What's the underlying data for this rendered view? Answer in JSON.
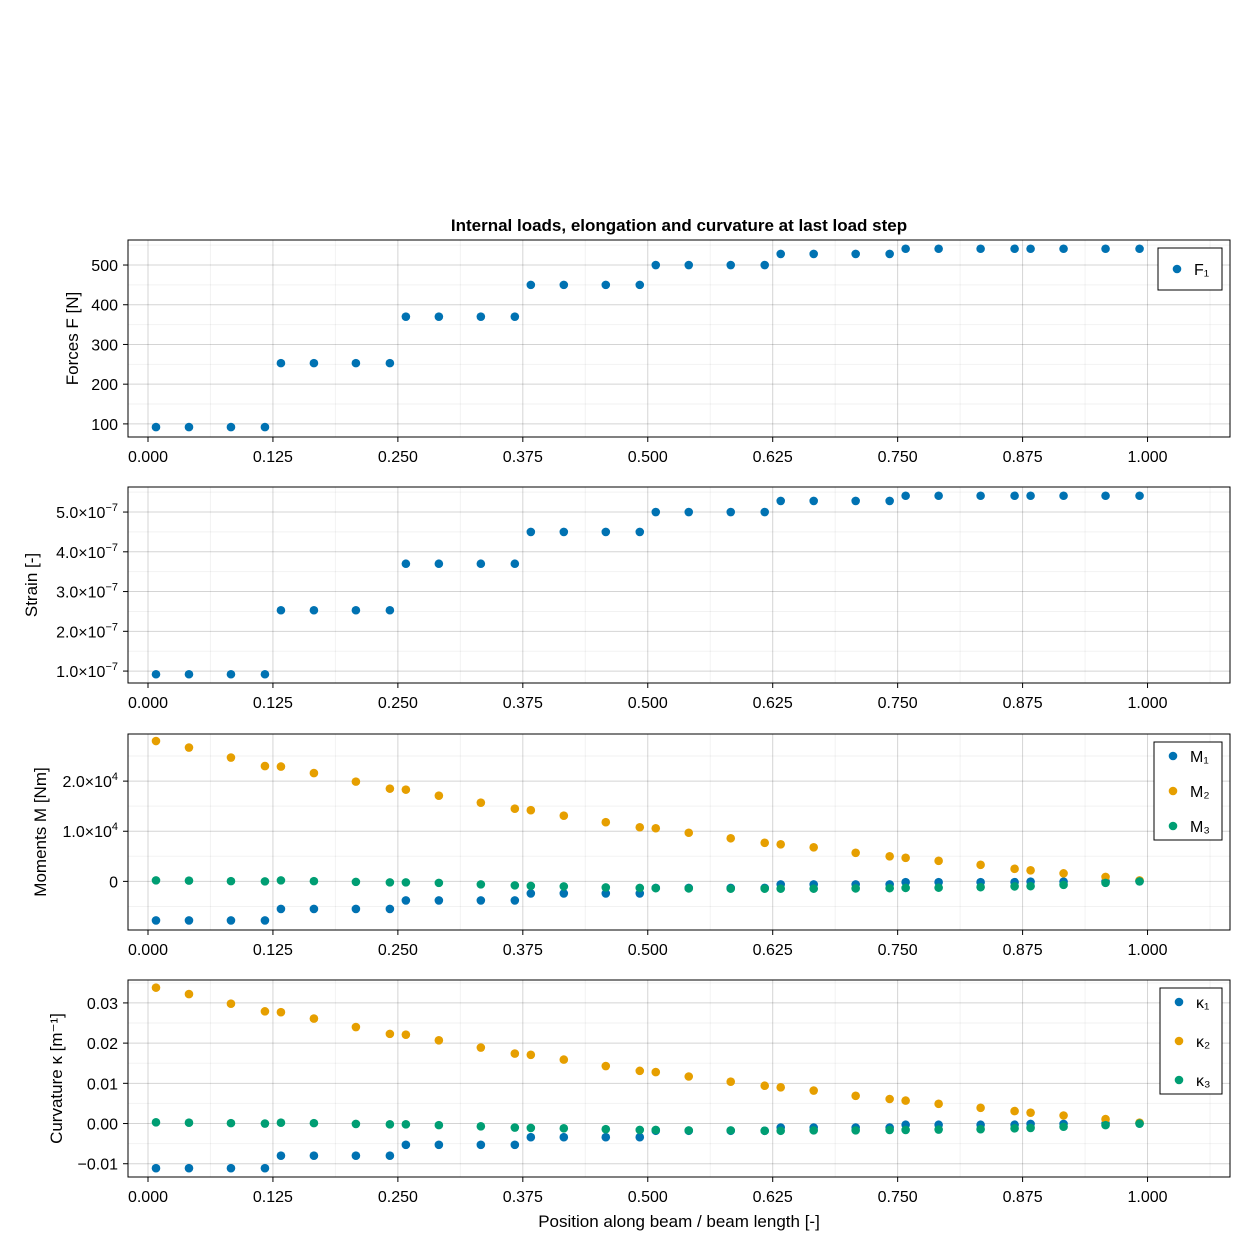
{
  "colors": {
    "blue": "#0072b2",
    "orange": "#e69f00",
    "green": "#009e73"
  },
  "figure": {
    "title": "Internal loads, elongation and curvature at last load step"
  },
  "chart_data": [
    {
      "type": "scatter",
      "title": "Internal loads, elongation and curvature at last load step",
      "xlabel": "",
      "ylabel": "Forces F [N]",
      "xlim": [
        -0.02,
        1.0825
      ],
      "ylim": [
        67,
        563
      ],
      "xticks": [
        0,
        0.125,
        0.25,
        0.375,
        0.5,
        0.625,
        0.75,
        0.875,
        1
      ],
      "xtick_labels": [
        "0.000",
        "0.125",
        "0.250",
        "0.375",
        "0.500",
        "0.625",
        "0.750",
        "0.875",
        "1.000"
      ],
      "yticks": [
        100,
        200,
        300,
        400,
        500
      ],
      "ytick_labels": [
        "100",
        "200",
        "300",
        "400",
        "500"
      ],
      "legend": "top-right",
      "grid": true,
      "series": [
        {
          "name": "F₁",
          "color": "blue",
          "x": [
            0.008,
            0.041,
            0.083,
            0.117,
            0.133,
            0.166,
            0.208,
            0.242,
            0.258,
            0.291,
            0.333,
            0.367,
            0.383,
            0.416,
            0.458,
            0.492,
            0.508,
            0.541,
            0.583,
            0.617,
            0.633,
            0.666,
            0.708,
            0.742,
            0.758,
            0.791,
            0.833,
            0.867,
            0.883,
            0.916,
            0.958,
            0.992
          ],
          "y": [
            92,
            92,
            92,
            92,
            253,
            253,
            253,
            253,
            370,
            370,
            370,
            370,
            450,
            450,
            450,
            450,
            500,
            500,
            500,
            500,
            528,
            528,
            528,
            528,
            541,
            541,
            541,
            541,
            541,
            541,
            541,
            541
          ]
        }
      ]
    },
    {
      "type": "scatter",
      "xlabel": "",
      "ylabel": "Strain [-]",
      "xlim": [
        -0.02,
        1.0825
      ],
      "ylim": [
        7e-08,
        5.63e-07
      ],
      "xticks": [
        0,
        0.125,
        0.25,
        0.375,
        0.5,
        0.625,
        0.75,
        0.875,
        1
      ],
      "xtick_labels": [
        "0.000",
        "0.125",
        "0.250",
        "0.375",
        "0.500",
        "0.625",
        "0.750",
        "0.875",
        "1.000"
      ],
      "yticks": [
        1e-07,
        2e-07,
        3e-07,
        4e-07,
        5e-07
      ],
      "ytick_labels": [
        {
          "m": "1.0×10",
          "e": "−7"
        },
        {
          "m": "2.0×10",
          "e": "−7"
        },
        {
          "m": "3.0×10",
          "e": "−7"
        },
        {
          "m": "4.0×10",
          "e": "−7"
        },
        {
          "m": "5.0×10",
          "e": "−7"
        }
      ],
      "legend": "none",
      "grid": true,
      "series": [
        {
          "color": "blue",
          "x": [
            0.008,
            0.041,
            0.083,
            0.117,
            0.133,
            0.166,
            0.208,
            0.242,
            0.258,
            0.291,
            0.333,
            0.367,
            0.383,
            0.416,
            0.458,
            0.492,
            0.508,
            0.541,
            0.583,
            0.617,
            0.633,
            0.666,
            0.708,
            0.742,
            0.758,
            0.791,
            0.833,
            0.867,
            0.883,
            0.916,
            0.958,
            0.992
          ],
          "y": [
            9.2e-08,
            9.2e-08,
            9.2e-08,
            9.2e-08,
            2.53e-07,
            2.53e-07,
            2.53e-07,
            2.53e-07,
            3.7e-07,
            3.7e-07,
            3.7e-07,
            3.7e-07,
            4.5e-07,
            4.5e-07,
            4.5e-07,
            4.5e-07,
            5e-07,
            5e-07,
            5e-07,
            5e-07,
            5.28e-07,
            5.28e-07,
            5.28e-07,
            5.28e-07,
            5.41e-07,
            5.41e-07,
            5.41e-07,
            5.41e-07,
            5.41e-07,
            5.41e-07,
            5.41e-07,
            5.41e-07
          ]
        }
      ]
    },
    {
      "type": "scatter",
      "xlabel": "",
      "ylabel": "Moments M [Nm]",
      "xlim": [
        -0.02,
        1.0825
      ],
      "ylim": [
        -9700,
        29400
      ],
      "xticks": [
        0,
        0.125,
        0.25,
        0.375,
        0.5,
        0.625,
        0.75,
        0.875,
        1
      ],
      "xtick_labels": [
        "0.000",
        "0.125",
        "0.250",
        "0.375",
        "0.500",
        "0.625",
        "0.750",
        "0.875",
        "1.000"
      ],
      "yticks": [
        0,
        10000,
        20000
      ],
      "ytick_labels": [
        {
          "m": "0",
          "e": ""
        },
        {
          "m": "1.0×10",
          "e": "4"
        },
        {
          "m": "2.0×10",
          "e": "4"
        }
      ],
      "legend": "top-right",
      "grid": true,
      "series": [
        {
          "name": "M₁",
          "color": "blue",
          "x": [
            0.008,
            0.041,
            0.083,
            0.117,
            0.133,
            0.166,
            0.208,
            0.242,
            0.258,
            0.291,
            0.333,
            0.367,
            0.383,
            0.416,
            0.458,
            0.492,
            0.508,
            0.541,
            0.583,
            0.617,
            0.633,
            0.666,
            0.708,
            0.742,
            0.758,
            0.791,
            0.833,
            0.867,
            0.883,
            0.916,
            0.958,
            0.992
          ],
          "y": [
            -7800,
            -7800,
            -7800,
            -7800,
            -5500,
            -5500,
            -5500,
            -5500,
            -3800,
            -3800,
            -3800,
            -3800,
            -2400,
            -2400,
            -2400,
            -2400,
            -1300,
            -1300,
            -1300,
            -1300,
            -600,
            -600,
            -600,
            -600,
            -150,
            -150,
            -150,
            -150,
            -50,
            -50,
            -20,
            0
          ]
        },
        {
          "name": "M₂",
          "color": "orange",
          "x": [
            0.008,
            0.041,
            0.083,
            0.117,
            0.133,
            0.166,
            0.208,
            0.242,
            0.258,
            0.291,
            0.333,
            0.367,
            0.383,
            0.416,
            0.458,
            0.492,
            0.508,
            0.541,
            0.583,
            0.617,
            0.633,
            0.666,
            0.708,
            0.742,
            0.758,
            0.791,
            0.833,
            0.867,
            0.883,
            0.916,
            0.958,
            0.992
          ],
          "y": [
            28000,
            26700,
            24700,
            23000,
            22900,
            21600,
            19900,
            18500,
            18300,
            17100,
            15700,
            14500,
            14200,
            13100,
            11800,
            10800,
            10600,
            9700,
            8600,
            7700,
            7400,
            6800,
            5700,
            5000,
            4700,
            4100,
            3300,
            2500,
            2200,
            1600,
            900,
            200
          ]
        },
        {
          "name": "M₃",
          "color": "green",
          "x": [
            0.008,
            0.041,
            0.083,
            0.117,
            0.133,
            0.166,
            0.208,
            0.242,
            0.258,
            0.291,
            0.333,
            0.367,
            0.383,
            0.416,
            0.458,
            0.492,
            0.508,
            0.541,
            0.583,
            0.617,
            0.633,
            0.666,
            0.708,
            0.742,
            0.758,
            0.791,
            0.833,
            0.867,
            0.883,
            0.916,
            0.958,
            0.992
          ],
          "y": [
            200,
            150,
            50,
            0,
            200,
            50,
            -100,
            -200,
            -200,
            -300,
            -600,
            -800,
            -900,
            -1000,
            -1200,
            -1300,
            -1350,
            -1400,
            -1450,
            -1450,
            -1450,
            -1450,
            -1400,
            -1350,
            -1300,
            -1250,
            -1150,
            -1000,
            -950,
            -700,
            -300,
            0
          ]
        }
      ]
    },
    {
      "type": "scatter",
      "xlabel": "Position along beam / beam length [-]",
      "ylabel": "Curvature κ [m⁻¹]",
      "xlim": [
        -0.02,
        1.0825
      ],
      "ylim": [
        -0.0133,
        0.0357
      ],
      "xticks": [
        0,
        0.125,
        0.25,
        0.375,
        0.5,
        0.625,
        0.75,
        0.875,
        1
      ],
      "xtick_labels": [
        "0.000",
        "0.125",
        "0.250",
        "0.375",
        "0.500",
        "0.625",
        "0.750",
        "0.875",
        "1.000"
      ],
      "yticks": [
        -0.01,
        0,
        0.01,
        0.02,
        0.03
      ],
      "ytick_labels": [
        "−0.01",
        "0.00",
        "0.01",
        "0.02",
        "0.03"
      ],
      "legend": "top-right",
      "grid": true,
      "series": [
        {
          "name": "κ₁",
          "color": "blue",
          "x": [
            0.008,
            0.041,
            0.083,
            0.117,
            0.133,
            0.166,
            0.208,
            0.242,
            0.258,
            0.291,
            0.333,
            0.367,
            0.383,
            0.416,
            0.458,
            0.492,
            0.508,
            0.541,
            0.583,
            0.617,
            0.633,
            0.666,
            0.708,
            0.742,
            0.758,
            0.791,
            0.833,
            0.867,
            0.883,
            0.916,
            0.958,
            0.992
          ],
          "y": [
            -0.0111,
            -0.0111,
            -0.0111,
            -0.0111,
            -0.008,
            -0.008,
            -0.008,
            -0.008,
            -0.0053,
            -0.0053,
            -0.0053,
            -0.0053,
            -0.0034,
            -0.0034,
            -0.0034,
            -0.0034,
            -0.0018,
            -0.0018,
            -0.0018,
            -0.0018,
            -0.001,
            -0.001,
            -0.001,
            -0.001,
            -0.0003,
            -0.0003,
            -0.0003,
            -0.0003,
            -0.0001,
            -0.0001,
            0,
            0
          ]
        },
        {
          "name": "κ₂",
          "color": "orange",
          "x": [
            0.008,
            0.041,
            0.083,
            0.117,
            0.133,
            0.166,
            0.208,
            0.242,
            0.258,
            0.291,
            0.333,
            0.367,
            0.383,
            0.416,
            0.458,
            0.492,
            0.508,
            0.541,
            0.583,
            0.617,
            0.633,
            0.666,
            0.708,
            0.742,
            0.758,
            0.791,
            0.833,
            0.867,
            0.883,
            0.916,
            0.958,
            0.992
          ],
          "y": [
            0.0338,
            0.0322,
            0.0298,
            0.0279,
            0.0277,
            0.0261,
            0.024,
            0.0223,
            0.0221,
            0.0207,
            0.0189,
            0.0174,
            0.0171,
            0.0159,
            0.0143,
            0.0131,
            0.0128,
            0.0117,
            0.0104,
            0.0094,
            0.009,
            0.0082,
            0.0069,
            0.0061,
            0.0057,
            0.0049,
            0.0039,
            0.0031,
            0.0027,
            0.002,
            0.0011,
            0.0002
          ]
        },
        {
          "name": "κ₃",
          "color": "green",
          "x": [
            0.008,
            0.041,
            0.083,
            0.117,
            0.133,
            0.166,
            0.208,
            0.242,
            0.258,
            0.291,
            0.333,
            0.367,
            0.383,
            0.416,
            0.458,
            0.492,
            0.508,
            0.541,
            0.583,
            0.617,
            0.633,
            0.666,
            0.708,
            0.742,
            0.758,
            0.791,
            0.833,
            0.867,
            0.883,
            0.916,
            0.958,
            0.992
          ],
          "y": [
            0.0003,
            0.0002,
            0.0001,
            0,
            0.0002,
            0.0001,
            -0.0001,
            -0.0002,
            -0.0002,
            -0.0004,
            -0.0007,
            -0.001,
            -0.0011,
            -0.0012,
            -0.0014,
            -0.0016,
            -0.0016,
            -0.0017,
            -0.0017,
            -0.0018,
            -0.0018,
            -0.0017,
            -0.0017,
            -0.0016,
            -0.0016,
            -0.0015,
            -0.0014,
            -0.0012,
            -0.0011,
            -0.0008,
            -0.0004,
            0
          ]
        }
      ]
    }
  ]
}
